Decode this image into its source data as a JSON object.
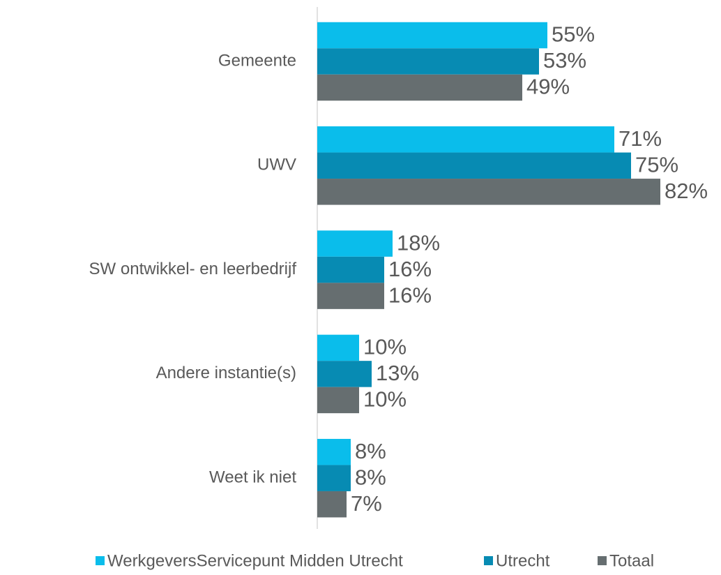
{
  "chart_data": {
    "type": "hbar",
    "categories": [
      "Gemeente",
      "UWV",
      "SW ontwikkel- en leerbedrijf",
      "Andere instantie(s)",
      "Weet ik niet"
    ],
    "series": [
      {
        "name": "WerkgeversServicepunt Midden Utrecht",
        "color": "#0ABDEB",
        "values": [
          55,
          71,
          18,
          10,
          8
        ],
        "value_labels": [
          "55%",
          "71%",
          "18%",
          "10%",
          "8%"
        ]
      },
      {
        "name": "Utrecht",
        "color": "#078BB3",
        "values": [
          53,
          75,
          16,
          13,
          8
        ],
        "value_labels": [
          "53%",
          "75%",
          "16%",
          "13%",
          "8%"
        ]
      },
      {
        "name": "Totaal",
        "color": "#666E70",
        "values": [
          49,
          82,
          16,
          10,
          7
        ],
        "value_labels": [
          "49%",
          "82%",
          "16%",
          "10%",
          "7%"
        ]
      }
    ],
    "xlim": [
      0,
      96
    ],
    "legend": "bottom"
  }
}
